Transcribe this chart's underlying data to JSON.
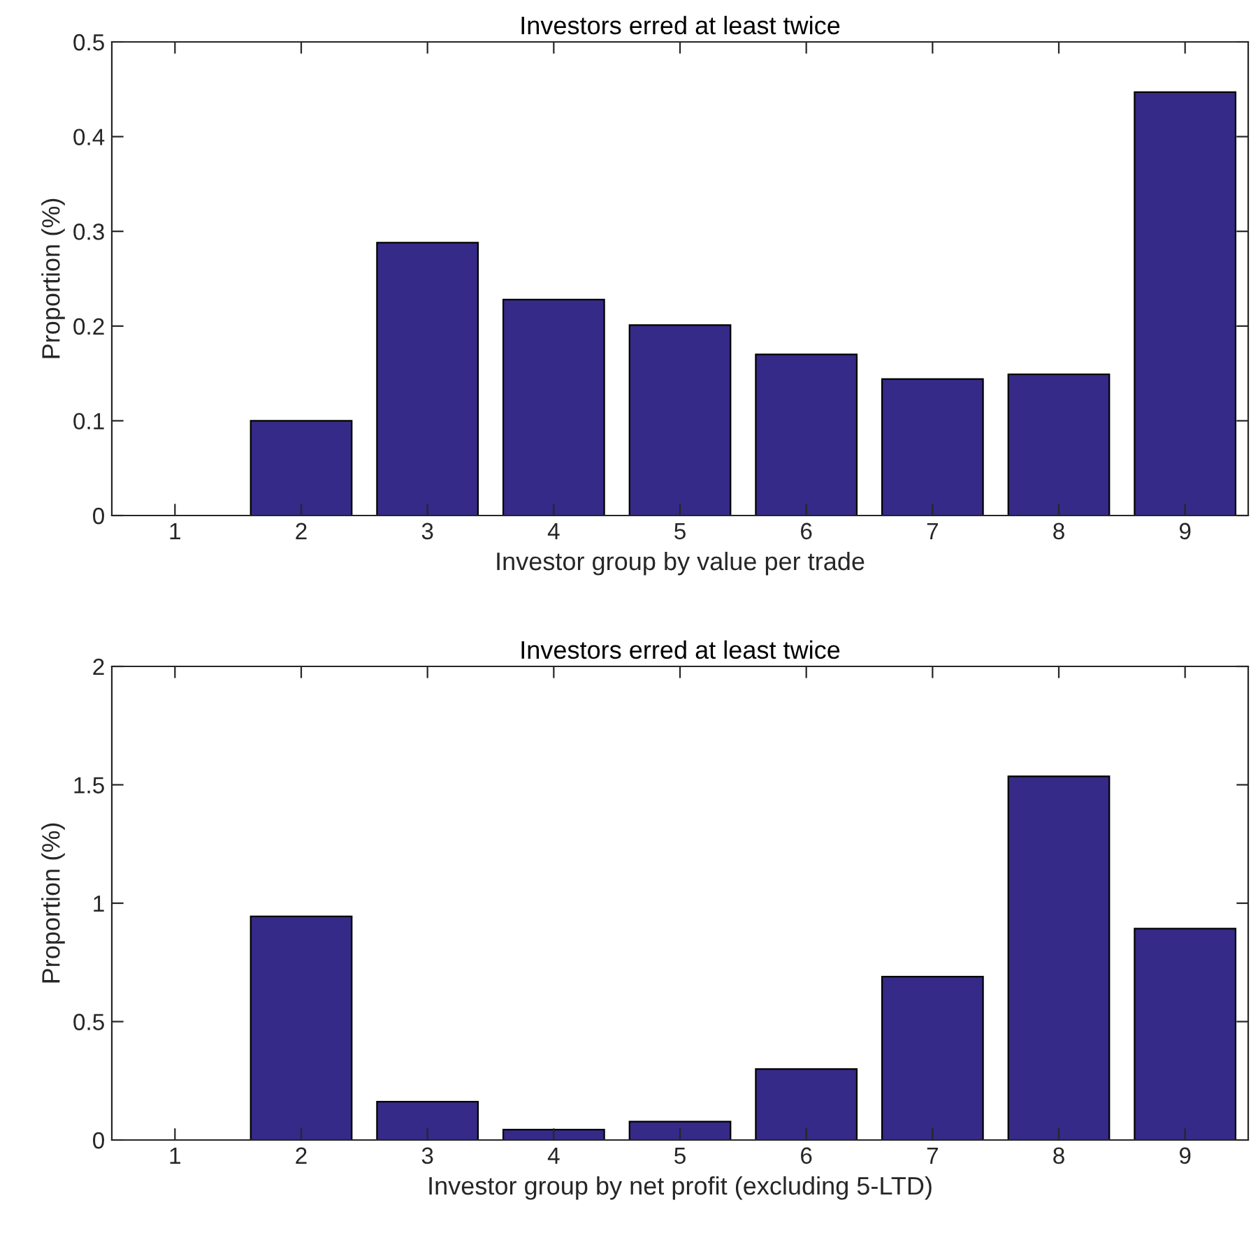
{
  "chart_data": [
    {
      "type": "bar",
      "title": "Investors erred at least twice",
      "xlabel": "Investor group by value per trade",
      "ylabel": "Proportion (%)",
      "categories": [
        "1",
        "2",
        "3",
        "4",
        "5",
        "6",
        "7",
        "8",
        "9"
      ],
      "values": [
        0,
        0.1,
        0.288,
        0.228,
        0.201,
        0.17,
        0.144,
        0.149,
        0.447
      ],
      "color": "#352a87",
      "ylim": [
        0,
        0.5
      ],
      "yticks": [
        0,
        0.1,
        0.2,
        0.3,
        0.4,
        0.5
      ],
      "grid": false
    },
    {
      "type": "bar",
      "title": "Investors erred at least twice",
      "xlabel": "Investor group by net profit (excluding 5-LTD)",
      "ylabel": "Proportion (%)",
      "categories": [
        "1",
        "2",
        "3",
        "4",
        "5",
        "6",
        "7",
        "8",
        "9"
      ],
      "values": [
        0,
        0.944,
        0.162,
        0.044,
        0.078,
        0.3,
        0.69,
        1.536,
        0.893
      ],
      "color": "#352a87",
      "ylim": [
        0,
        2
      ],
      "yticks": [
        0,
        0.5,
        1,
        1.5,
        2
      ],
      "grid": false
    }
  ]
}
